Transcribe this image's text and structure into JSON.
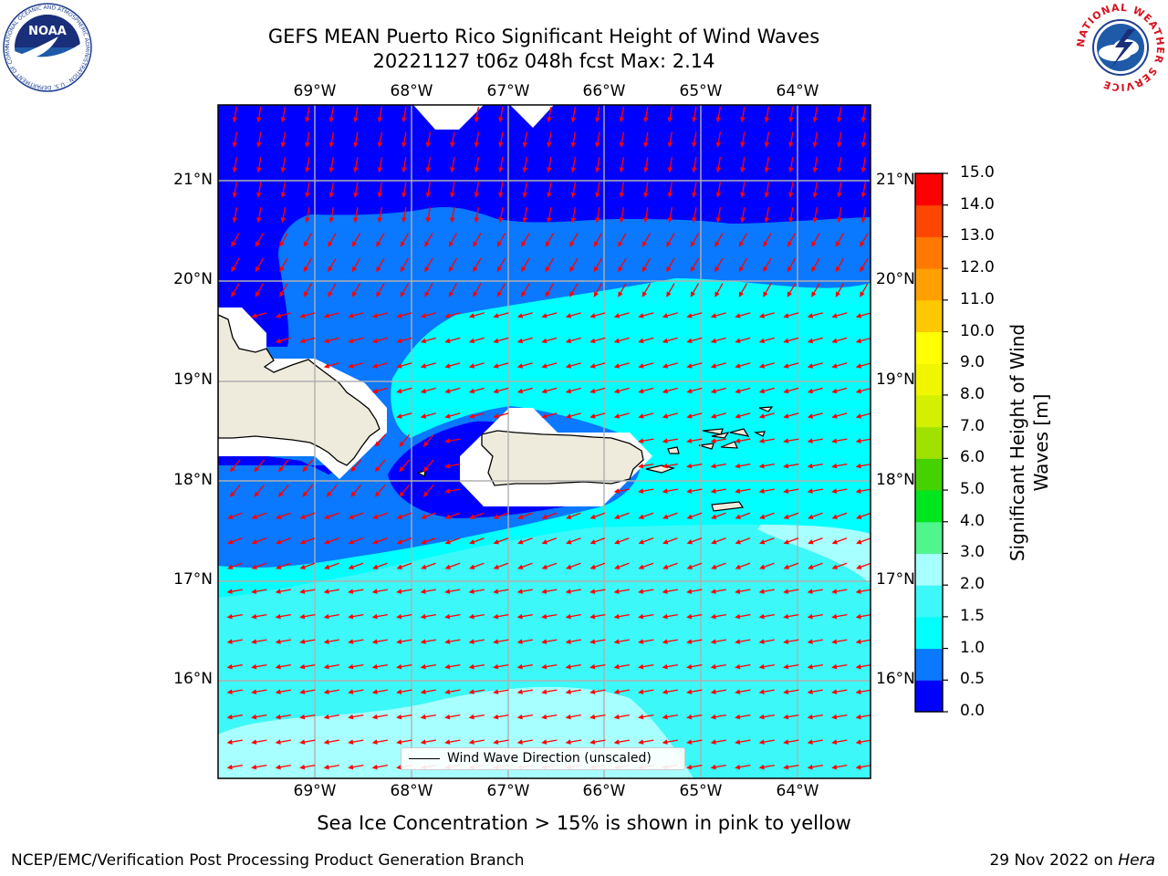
{
  "header": {
    "title": "GEFS MEAN Puerto Rico Significant Height of Wind Waves",
    "subtitle": "20221127 t06z 048h fcst   Max: 2.14"
  },
  "logos": {
    "noaa": {
      "text": "NOAA",
      "ring_text": "NATIONAL OCEANIC AND ATMOSPHERIC ADMINISTRATION · U.S. DEPARTMENT OF COMMERCE"
    },
    "nws": {
      "ring_text": "NATIONAL WEATHER SERVICE"
    }
  },
  "map": {
    "lon_labels": [
      "69°W",
      "68°W",
      "67°W",
      "66°W",
      "65°W",
      "64°W"
    ],
    "lat_labels": [
      "21°N",
      "20°N",
      "19°N",
      "18°N",
      "17°N",
      "16°N"
    ],
    "legend_label": "Wind Wave Direction (unscaled)",
    "colors": {
      "land": "#efebdc",
      "vector": "#ff0000",
      "gridline": "#b0b0b0"
    }
  },
  "colorbar": {
    "label_line1": "Significant Height of Wind",
    "label_line2": "Waves [m]",
    "ticks": [
      "0.0",
      "0.5",
      "1.0",
      "1.5",
      "2.0",
      "3.0",
      "4.0",
      "5.0",
      "6.0",
      "7.0",
      "8.0",
      "9.0",
      "10.0",
      "11.0",
      "12.0",
      "13.0",
      "14.0",
      "15.0"
    ],
    "colors": [
      "#0000ff",
      "#0a78ff",
      "#00ffff",
      "#3cf8f8",
      "#a8ffff",
      "#50f58c",
      "#00e61e",
      "#46d200",
      "#a0e100",
      "#d2f000",
      "#f0f500",
      "#ffff00",
      "#ffc800",
      "#ffa000",
      "#ff7800",
      "#ff4600",
      "#ff0000"
    ]
  },
  "notes": {
    "sea_ice": "Sea Ice Concentration > 15% is shown in pink to yellow",
    "footer_left": "NCEP/EMC/Verification Post Processing Product Generation Branch",
    "footer_date": "29 Nov 2022 on ",
    "footer_host": "Hera"
  }
}
